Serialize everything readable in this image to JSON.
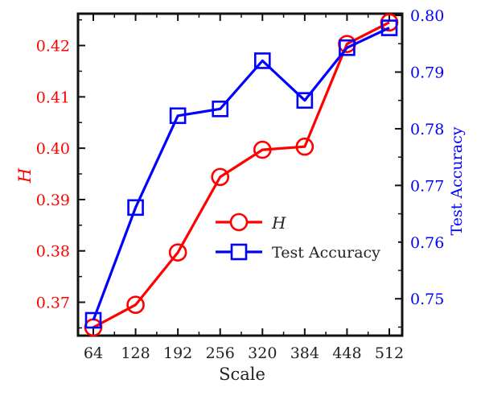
{
  "chart_data": {
    "type": "line",
    "xlabel": "Scale",
    "x": [
      "64",
      "128",
      "192",
      "256",
      "320",
      "384",
      "448",
      "512"
    ],
    "y_left": {
      "label": "H",
      "color": "#ff0000",
      "ylim": [
        0.3635,
        0.4262
      ],
      "ticks": [
        0.37,
        0.38,
        0.39,
        0.4,
        0.41,
        0.42
      ],
      "tick_labels": [
        "0.37",
        "0.38",
        "0.39",
        "0.40",
        "0.41",
        "0.42"
      ]
    },
    "y_right": {
      "label": "Test Accuracy",
      "color": "#0000ff",
      "ylim": [
        0.7435,
        0.8003
      ],
      "ticks": [
        0.75,
        0.76,
        0.77,
        0.78,
        0.79,
        0.8
      ],
      "tick_labels": [
        "0.75",
        "0.76",
        "0.77",
        "0.78",
        "0.79",
        "0.80"
      ]
    },
    "series": [
      {
        "name": "H",
        "axis": "left",
        "color": "#ff0000",
        "marker": "circle",
        "values": [
          0.3651,
          0.3695,
          0.3797,
          0.3944,
          0.3997,
          0.4003,
          0.4203,
          0.4245
        ]
      },
      {
        "name": "Test Accuracy",
        "axis": "right",
        "color": "#0000ff",
        "marker": "square",
        "values": [
          0.7462,
          0.7661,
          0.7823,
          0.7835,
          0.792,
          0.785,
          0.7943,
          0.7978
        ]
      }
    ],
    "legend": {
      "position": "lower-right",
      "entries": [
        "H",
        "Test Accuracy"
      ]
    },
    "grid": false
  }
}
